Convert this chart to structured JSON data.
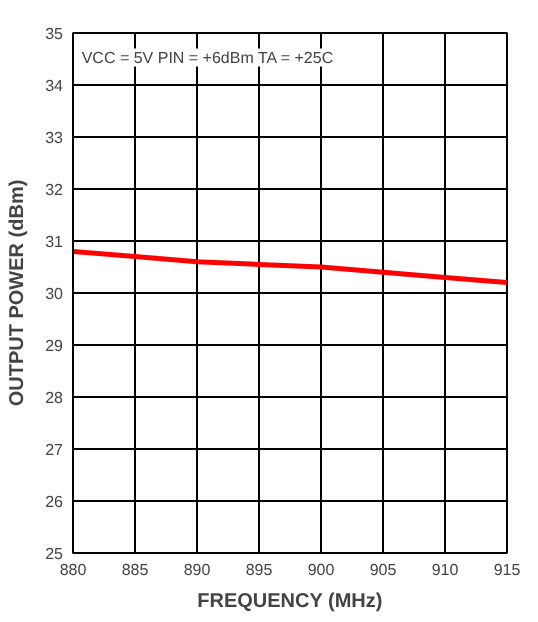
{
  "chart_data": {
    "type": "line",
    "xlabel": "FREQUENCY (MHz)",
    "ylabel": "OUTPUT POWER (dBm)",
    "annotations": [
      "VCC = 5V PIN = +6dBm TA = +25C"
    ],
    "x": [
      880,
      885,
      890,
      895,
      900,
      905,
      910,
      915
    ],
    "series": [
      {
        "color": "#ff0000",
        "values": [
          30.8,
          30.7,
          30.6,
          30.55,
          30.5,
          30.4,
          30.3,
          30.2
        ]
      }
    ],
    "xlim": [
      880,
      915
    ],
    "ylim": [
      25,
      35
    ],
    "xticks": [
      880,
      885,
      890,
      895,
      900,
      905,
      910,
      915
    ],
    "yticks": [
      25,
      26,
      27,
      28,
      29,
      30,
      31,
      32,
      33,
      34,
      35
    ],
    "grid": true,
    "marker": "none",
    "line_style": "solid"
  }
}
